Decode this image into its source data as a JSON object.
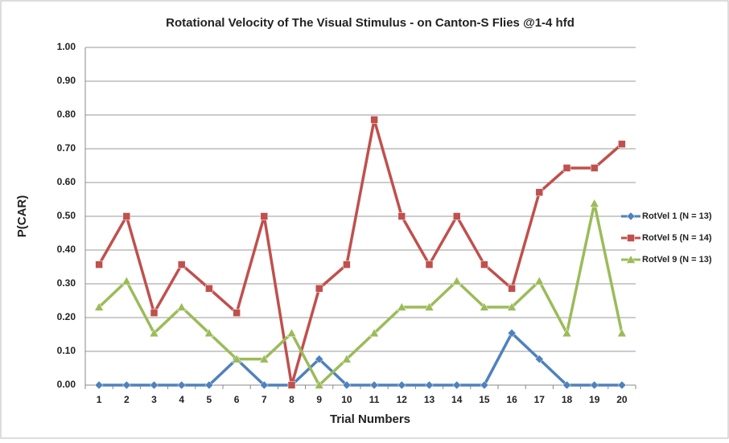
{
  "chart_data": {
    "type": "line",
    "title": "Rotational Velocity of The Visual Stimulus - on Canton-S Flies @1-4 hfd",
    "x_label": "Trial Numbers",
    "y_label": "P(CAR)",
    "categories": [
      "1",
      "2",
      "3",
      "4",
      "5",
      "6",
      "7",
      "8",
      "9",
      "10",
      "11",
      "12",
      "13",
      "14",
      "15",
      "16",
      "17",
      "18",
      "19",
      "20"
    ],
    "ylim": [
      0,
      1
    ],
    "yticks": [
      {
        "value": 0,
        "label": "0.00"
      },
      {
        "value": 0.1,
        "label": "0.10"
      },
      {
        "value": 0.2,
        "label": "0.20"
      },
      {
        "value": 0.3,
        "label": "0.30"
      },
      {
        "value": 0.4,
        "label": "0.40"
      },
      {
        "value": 0.5,
        "label": "0.50"
      },
      {
        "value": 0.6,
        "label": "0.60"
      },
      {
        "value": 0.7,
        "label": "0.70"
      },
      {
        "value": 0.8,
        "label": "0.80"
      },
      {
        "value": 0.9,
        "label": "0.90"
      },
      {
        "value": 1,
        "label": "1.00"
      }
    ],
    "grid": true,
    "legend": "right",
    "series": [
      {
        "name": "RotVel 1 (N = 13)",
        "color": "#4f81bd",
        "marker": "diamond",
        "values": [
          0,
          0,
          0,
          0,
          0,
          0.077,
          0,
          0,
          0.077,
          0,
          0,
          0,
          0,
          0,
          0,
          0.154,
          0.077,
          0,
          0,
          0
        ]
      },
      {
        "name": "RotVel 5 (N = 14)",
        "color": "#c0504d",
        "marker": "square",
        "values": [
          0.357,
          0.5,
          0.214,
          0.357,
          0.286,
          0.214,
          0.5,
          0,
          0.286,
          0.357,
          0.786,
          0.5,
          0.357,
          0.5,
          0.357,
          0.286,
          0.571,
          0.643,
          0.643,
          0.714
        ]
      },
      {
        "name": "RotVel 9 (N = 13)",
        "color": "#9bbb59",
        "marker": "triangle",
        "values": [
          0.231,
          0.308,
          0.154,
          0.231,
          0.154,
          0.077,
          0.077,
          0.154,
          0,
          0.077,
          0.154,
          0.231,
          0.231,
          0.308,
          0.231,
          0.231,
          0.308,
          0.154,
          0.538,
          0.154
        ]
      }
    ]
  }
}
